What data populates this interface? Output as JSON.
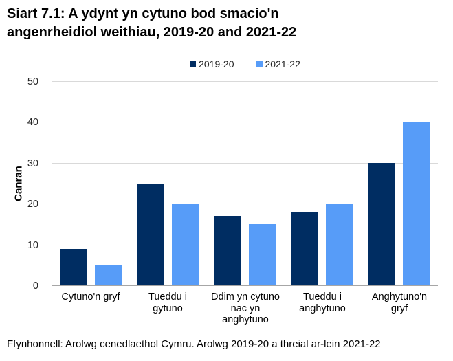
{
  "chart_data": {
    "type": "bar",
    "title": "Siart 7.1: A ydynt yn cytuno bod smacio'n\nangenrheidiol weithiau, 2019-20 and 2021-22",
    "ylabel": "Canran",
    "xlabel": "",
    "ylim": [
      0,
      50
    ],
    "yticks": [
      0,
      10,
      20,
      30,
      40,
      50
    ],
    "grid": "horizontal",
    "legend_position": "top-center",
    "categories": [
      "Cytuno'n gryf",
      "Tueddu i\ngytuno",
      "Ddim yn cytuno\nnac yn\nanghytuno",
      "Tueddu i\nanghytuno",
      "Anghytuno'n\ngryf"
    ],
    "series": [
      {
        "name": "2019-20",
        "color": "#002D62",
        "values": [
          9,
          25,
          17,
          18,
          30
        ]
      },
      {
        "name": "2021-22",
        "color": "#579CF8",
        "values": [
          5,
          20,
          15,
          20,
          40
        ]
      }
    ]
  },
  "source_note": "Ffynhonnell: Arolwg cenedlaethol Cymru. Arolwg 2019-20 a threial ar-lein 2021-22",
  "colors": {
    "gridline": "#D9D9D9",
    "axis_line": "#A6A6A6",
    "text": "#000000"
  }
}
